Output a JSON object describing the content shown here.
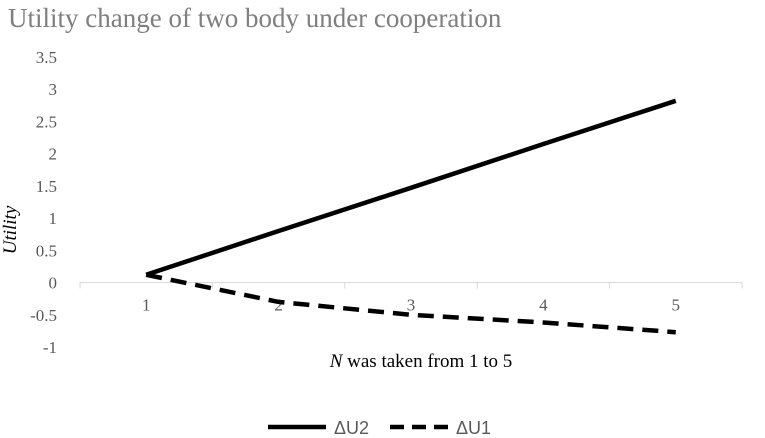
{
  "chart_data": {
    "type": "line",
    "title": "Utility change of two body under cooperation",
    "xlabel_var": "N",
    "xlabel_rest": " was taken from 1 to 5",
    "ylabel": "Utility",
    "categories": [
      "1",
      "2",
      "3",
      "4",
      "5"
    ],
    "y_ticks": [
      "3.5",
      "3",
      "2.5",
      "2",
      "1.5",
      "1",
      "0.5",
      "0",
      "-0.5",
      "-1"
    ],
    "ylim": [
      -1,
      3.5
    ],
    "grid": false,
    "legend_position": "bottom",
    "series": [
      {
        "name": "ΔU2",
        "style": "solid",
        "color": "#000000",
        "values": [
          0.12,
          0.8,
          1.47,
          2.15,
          2.82
        ]
      },
      {
        "name": "ΔU1",
        "style": "dashed",
        "color": "#000000",
        "values": [
          0.12,
          -0.3,
          -0.5,
          -0.62,
          -0.77
        ]
      }
    ]
  }
}
